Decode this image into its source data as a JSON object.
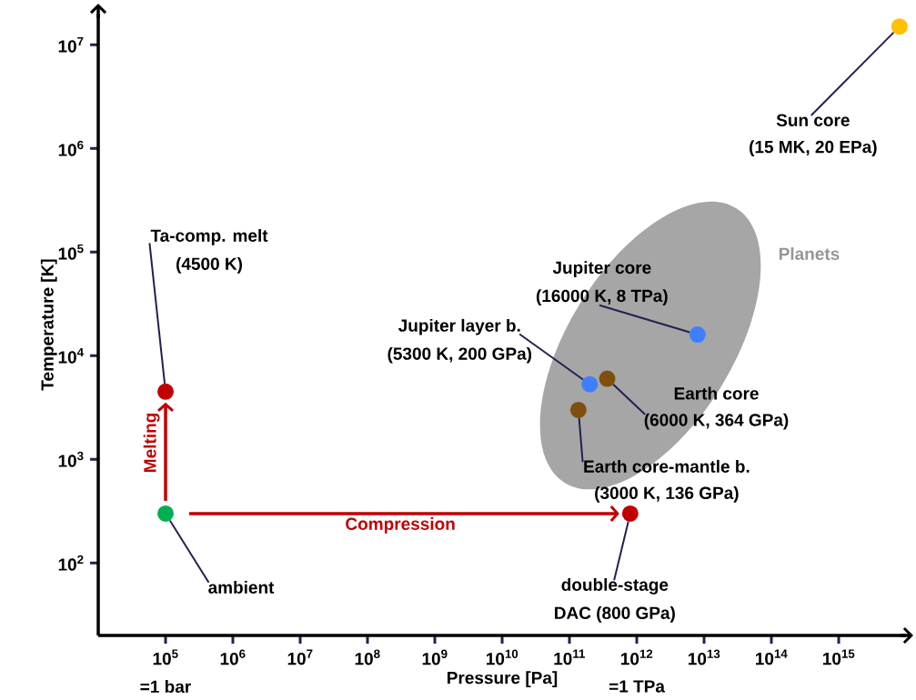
{
  "chart_data": {
    "type": "scatter",
    "xlabel": "Pressure [Pa]",
    "ylabel": "Temperature [K]",
    "log": "xy",
    "grid": false,
    "xlim": [
      10000,
      1e+16
    ],
    "ylim": [
      20,
      20000000
    ],
    "xticks": [
      {
        "value": 100000,
        "label": "10$^{5}$"
      },
      {
        "value": 1000000,
        "label": "10$^{6}$"
      },
      {
        "value": 10000000,
        "label": "10$^{7}$"
      },
      {
        "value": 100000000,
        "label": "10$^{8}$"
      },
      {
        "value": 1000000000,
        "label": "10$^{9}$"
      },
      {
        "value": 10000000000,
        "label": "10$^{10}$"
      },
      {
        "value": 100000000000,
        "label": "10$^{11}$"
      },
      {
        "value": 1000000000000,
        "label": "10$^{12}$"
      },
      {
        "value": 10000000000000,
        "label": "10$^{13}$"
      },
      {
        "value": 100000000000000,
        "label": "10$^{14}$"
      },
      {
        "value": 1000000000000000,
        "label": "10$^{15}$"
      }
    ],
    "yticks": [
      {
        "value": 100,
        "label": "10$^{2}$"
      },
      {
        "value": 1000,
        "label": "10$^{3}$"
      },
      {
        "value": 10000,
        "label": "10$^{4}$"
      },
      {
        "value": 100000,
        "label": "10$^{5}$"
      },
      {
        "value": 1000000,
        "label": "10$^{6}$"
      },
      {
        "value": 10000000,
        "label": "10$^{7}$"
      }
    ],
    "x": [
      100000,
      100000,
      800000000000,
      200000000000,
      364000000000,
      136000000000,
      8000000000000,
      8000000000000000
    ],
    "values": [
      300,
      4500,
      300,
      5300,
      6000,
      3000,
      16000,
      15000000
    ],
    "colors": [
      "#00b050",
      "#c00000",
      "#c00000",
      "#3f7fff",
      "#7f4f0f",
      "#7f4f0f",
      "#3f7fff",
      "#ffc000"
    ],
    "annotations": [
      {
        "text": "ambient",
        "x": 100000,
        "y": 300
      },
      {
        "text": "Ta-comp. melt",
        "x": 100000,
        "y": 4500
      },
      "(4500 K)",
      {
        "text": "double-stage",
        "x": 800000000000,
        "y": 300
      },
      "DAC (800 GPa)",
      {
        "text": "Jupiter layer b.",
        "x": 200000000000,
        "y": 5300
      },
      "(5300 K, 200 GPa)",
      "Earth core",
      {
        "text": "(6000 K, 364 GPa)",
        "x": 364000000000,
        "y": 6000
      },
      {
        "text": "Earth core-mantle b.",
        "x": 136000000000,
        "y": 3000
      },
      "(3000 K, 136 GPa)",
      "Jupiter core",
      {
        "text": "(16000 K, 8 TPa)",
        "x": 8000000000000,
        "y": 16000
      },
      {
        "text": "Sun core",
        "x": 8000000000000000,
        "y": 15000000
      },
      "(15 MK, 20 EPa)",
      "Melting",
      "Compression",
      "Planets",
      "=1 bar",
      "=1 TPa"
    ]
  }
}
